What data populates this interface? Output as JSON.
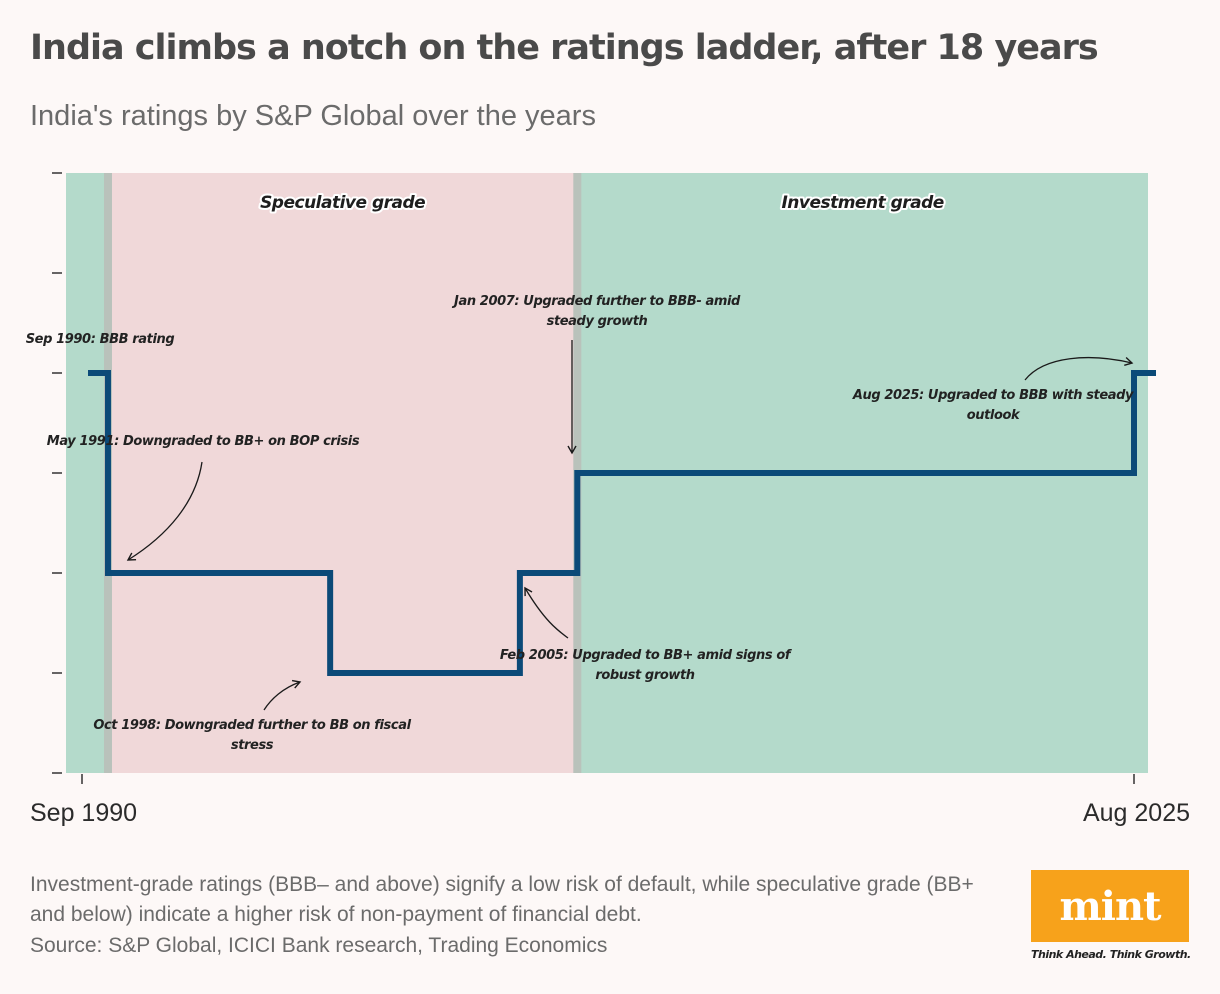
{
  "header": {
    "title": "India climbs a notch on the ratings ladder, after 18 years",
    "subtitle": "India's ratings by S&P Global over the years"
  },
  "chart_data": {
    "type": "line",
    "step": true,
    "x_start_label": "Sep 1990",
    "x_end_label": "Aug 2025",
    "rating_scale": [
      "BB",
      "BB+",
      "BBB-",
      "BBB"
    ],
    "series": [
      {
        "points": [
          {
            "date": "Sep 1990",
            "rating": "BBB"
          },
          {
            "date": "May 1991",
            "rating": "BB+"
          },
          {
            "date": "Oct 1998",
            "rating": "BB"
          },
          {
            "date": "Feb 2005",
            "rating": "BB+"
          },
          {
            "date": "Jan 2007",
            "rating": "BBB-"
          },
          {
            "date": "Aug 2025",
            "rating": "BBB"
          }
        ]
      }
    ],
    "zones": [
      {
        "label": "",
        "from": "Sep 1990",
        "to": "May 1991",
        "grade": "investment"
      },
      {
        "label": "Speculative grade",
        "from": "May 1991",
        "to": "Jan 2007",
        "grade": "speculative"
      },
      {
        "label": "Investment grade",
        "from": "Jan 2007",
        "to": "Aug 2025",
        "grade": "investment"
      }
    ],
    "annotations": [
      {
        "id": "sep1990",
        "lines": [
          "Sep 1990: BBB rating"
        ]
      },
      {
        "id": "may1991",
        "lines": [
          "May 1991: Downgraded to BB+ on BOP crisis"
        ]
      },
      {
        "id": "oct1998",
        "lines": [
          "Oct 1998: Downgraded further to BB on fiscal",
          "stress"
        ]
      },
      {
        "id": "feb2005",
        "lines": [
          "Feb 2005: Upgraded to BB+ amid signs of",
          "robust growth"
        ]
      },
      {
        "id": "jan2007",
        "lines": [
          "Jan 2007: Upgraded further to BBB- amid",
          "steady growth"
        ]
      },
      {
        "id": "aug2025",
        "lines": [
          "Aug 2025: Upgraded to BBB with steady",
          "outlook"
        ]
      }
    ],
    "colors": {
      "line": "#0b4a78",
      "investment_zone": "#b4dacb",
      "speculative_zone": "#f0d8d9",
      "zone_border": "#b9c2bb"
    }
  },
  "footer": {
    "note": "Investment-grade ratings (BBB– and above) signify a low risk of default, while speculative grade (BB+ and below) indicate a higher risk of non-payment of financial debt.",
    "source": "Source: S&P Global, ICICI Bank research, Trading Economics",
    "logo_text": "mint",
    "tagline": "Think Ahead. Think Growth."
  }
}
